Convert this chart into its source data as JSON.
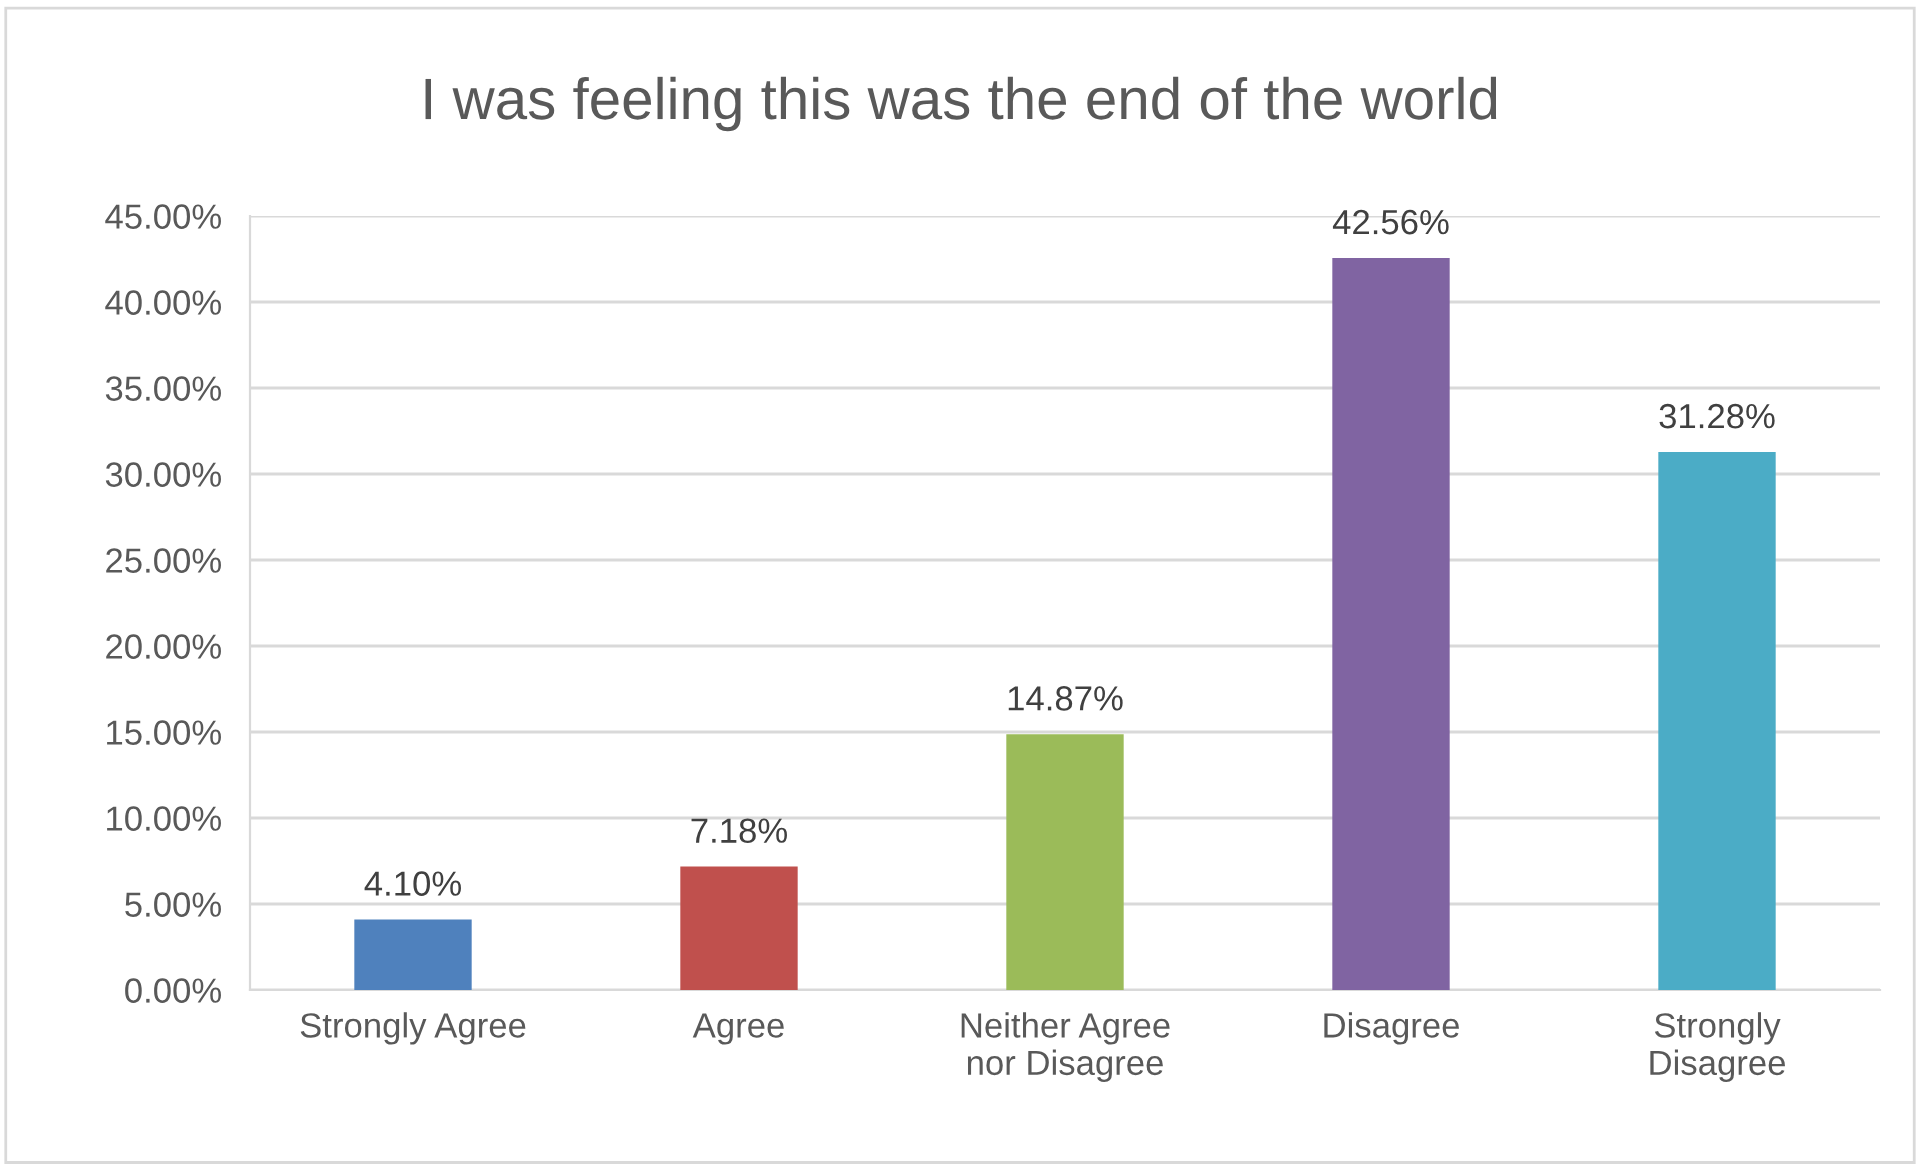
{
  "chart_data": {
    "type": "bar",
    "title": "I was feeling this was the end of the world",
    "categories": [
      "Strongly Agree",
      "Agree",
      "Neither Agree\nnor Disagree",
      "Disagree",
      "Strongly\nDisagree"
    ],
    "values": [
      4.1,
      7.18,
      14.87,
      42.56,
      31.28
    ],
    "colors": [
      "#4f81bd",
      "#c0504d",
      "#9bbb59",
      "#8064a2",
      "#4bacc6"
    ],
    "value_labels": [
      "4.10%",
      "7.18%",
      "14.87%",
      "42.56%",
      "31.28%"
    ],
    "ylim": [
      0,
      45
    ],
    "yticks": [
      {
        "value": 0,
        "label": "0.00%"
      },
      {
        "value": 5,
        "label": "5.00%"
      },
      {
        "value": 10,
        "label": "10.00%"
      },
      {
        "value": 15,
        "label": "15.00%"
      },
      {
        "value": 20,
        "label": "20.00%"
      },
      {
        "value": 25,
        "label": "25.00%"
      },
      {
        "value": 30,
        "label": "30.00%"
      },
      {
        "value": 35,
        "label": "35.00%"
      },
      {
        "value": 40,
        "label": "40.00%"
      },
      {
        "value": 45,
        "label": "45.00%"
      }
    ],
    "grid": "y",
    "legend": false
  }
}
